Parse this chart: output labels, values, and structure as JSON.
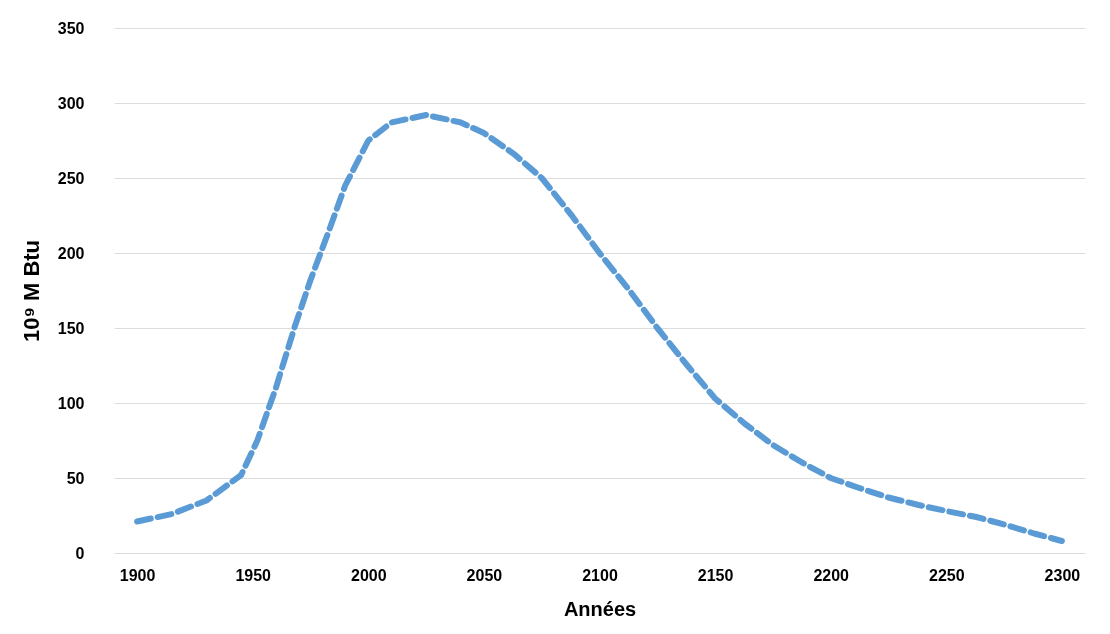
{
  "chart_data": {
    "type": "line",
    "xlabel": "Années",
    "ylabel": "10⁹ M Btu",
    "x": [
      1900,
      1915,
      1930,
      1945,
      1952,
      1960,
      1968,
      1975,
      1983,
      1990,
      2000,
      2010,
      2025,
      2040,
      2050,
      2063,
      2075,
      2088,
      2100,
      2113,
      2125,
      2138,
      2150,
      2163,
      2175,
      2188,
      2200,
      2213,
      2225,
      2238,
      2250,
      2263,
      2275,
      2288,
      2300
    ],
    "series": [
      {
        "color": "#5b9bd5",
        "values": [
          21,
          26,
          35,
          52,
          75,
          110,
          150,
          182,
          215,
          245,
          275,
          287,
          292,
          287,
          280,
          266,
          250,
          225,
          200,
          175,
          150,
          125,
          103,
          86,
          72,
          60,
          50,
          43,
          37,
          32,
          28,
          24,
          19,
          13,
          8
        ]
      }
    ],
    "xlim": [
      1890,
      2310
    ],
    "xticks": [
      1900,
      1950,
      2000,
      2050,
      2100,
      2150,
      2200,
      2250,
      2300
    ],
    "ylim": [
      0,
      350
    ],
    "yticks": [
      0,
      50,
      100,
      150,
      200,
      250,
      300,
      350
    ],
    "grid": "y",
    "line_style": "dashed",
    "marker": "none",
    "legend": false
  }
}
